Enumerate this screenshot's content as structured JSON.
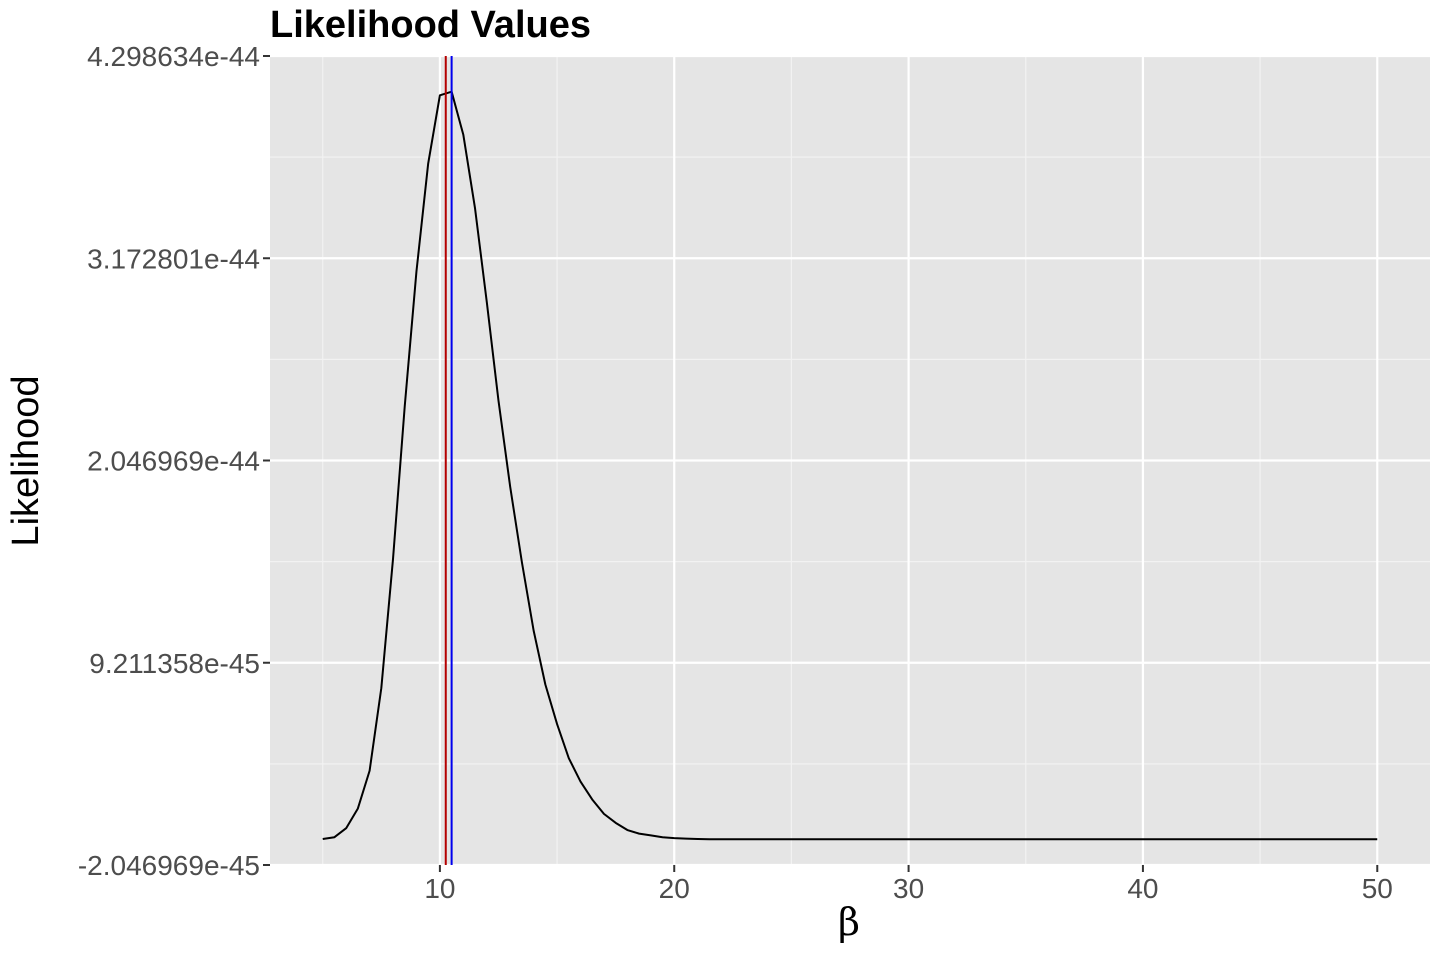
{
  "chart_data": {
    "type": "line",
    "title": "Likelihood Values",
    "xlabel": "β",
    "ylabel": "Likelihood",
    "xlim": [
      2.75,
      52.25
    ],
    "ylim": [
      -2.046969e-45,
      4.298634e-44
    ],
    "grid": true,
    "legend": "none",
    "x_ticks": [
      10,
      20,
      30,
      40,
      50
    ],
    "x_tick_labels": [
      "10",
      "20",
      "30",
      "40",
      "50"
    ],
    "x_minor_ticks": [
      5,
      15,
      25,
      35,
      45
    ],
    "y_ticks": [
      -2.046969e-45,
      9.211358e-45,
      2.046969e-44,
      3.172801e-44,
      4.298634e-44
    ],
    "y_tick_labels": [
      "-2.046969e-45",
      "9.211358e-45",
      "2.046969e-44",
      "3.172801e-44",
      "4.298634e-44"
    ],
    "series": [
      {
        "color": "#000000",
        "x": [
          5,
          5.5,
          6,
          6.5,
          7,
          7.5,
          8,
          8.5,
          9,
          9.5,
          10,
          10.5,
          11,
          11.5,
          12,
          12.5,
          13,
          13.5,
          14,
          14.5,
          15,
          15.5,
          16,
          16.5,
          17,
          17.5,
          18,
          18.5,
          19,
          19.5,
          20,
          20.5,
          21,
          21.5,
          22,
          23,
          24,
          25,
          30,
          35,
          40,
          45,
          50
        ],
        "y": [
          -6e-46,
          -5e-46,
          0,
          1.1e-45,
          3.2e-45,
          7.8e-45,
          1.5e-44,
          2.35e-44,
          3.1e-44,
          3.7e-44,
          4.08e-44,
          4.1e-44,
          3.86e-44,
          3.45e-44,
          2.93e-44,
          2.38e-44,
          1.9e-44,
          1.48e-44,
          1.1e-44,
          8e-45,
          5.8e-45,
          3.9e-45,
          2.6e-45,
          1.6e-45,
          8e-46,
          3e-46,
          -1e-46,
          -3e-46,
          -4e-46,
          -5e-46,
          -5.5e-46,
          -5.8e-46,
          -6e-46,
          -6.1e-46,
          -6.1e-46,
          -6.1e-46,
          -6.1e-46,
          -6.1e-46,
          -6.1e-46,
          -6.1e-46,
          -6.1e-46,
          -6.1e-46,
          -6.1e-46
        ]
      }
    ],
    "vlines": [
      {
        "x": 10.25,
        "color": "#b40000"
      },
      {
        "x": 10.5,
        "color": "#0000ee"
      }
    ],
    "colors": {
      "panel_background": "#e5e5e5",
      "grid_major": "#ffffff",
      "grid_minor": "#f2f2f2",
      "tick_color": "#333333"
    }
  }
}
